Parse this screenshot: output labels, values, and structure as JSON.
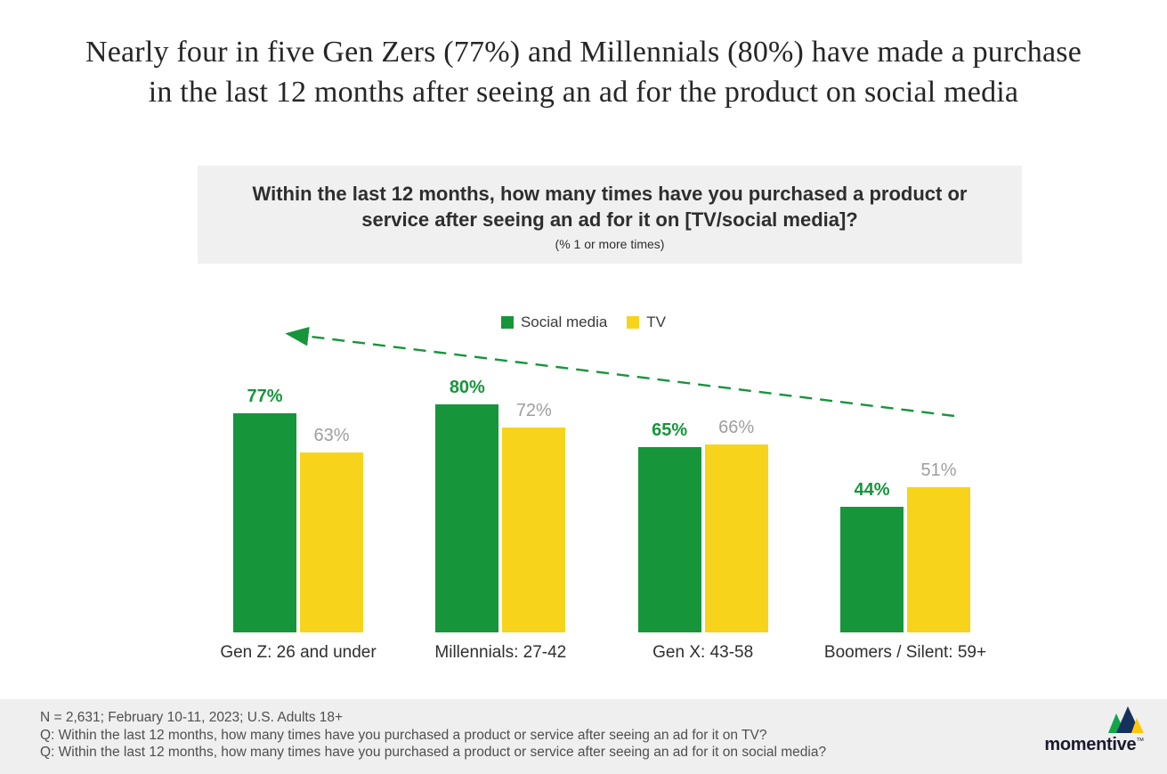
{
  "title": {
    "line1": "Nearly four in five Gen Zers (77%) and Millennials (80%) have made a purchase",
    "line2": "in the last 12 months after seeing an ad for the product on social media"
  },
  "question_box": {
    "question": "Within the last 12 months, how many times have you purchased a product or service after seeing an ad for it on [TV/social media]?",
    "note": "(% 1 or more times)"
  },
  "chart_data": {
    "type": "bar",
    "categories": [
      "Gen Z: 26 and under",
      "Millennials: 27-42",
      "Gen X: 43-58",
      "Boomers / Silent: 59+"
    ],
    "series": [
      {
        "name": "Social media",
        "color": "#17953B",
        "label_color": "#17953B",
        "label_weight": "bold",
        "values": [
          77,
          80,
          65,
          44
        ]
      },
      {
        "name": "TV",
        "color": "#F7D41B",
        "label_color": "#9E9E9E",
        "label_weight": "normal",
        "values": [
          63,
          72,
          66,
          51
        ]
      }
    ],
    "value_suffix": "%",
    "ylim": [
      0,
      100
    ],
    "grid": false,
    "legend_position": "top-center",
    "trend_arrow": {
      "color": "#17953B",
      "style": "dashed",
      "direction": "up-left"
    }
  },
  "footer": {
    "lines": [
      "N = 2,631; February 10-11, 2023; U.S. Adults 18+",
      "Q: Within the last 12 months, how many times have you purchased a product or service after seeing an ad for it on TV?",
      "Q: Within the last 12 months, how many times have you purchased a product or service after seeing an ad for it on social media?"
    ],
    "brand": "momentive",
    "trademark": "™"
  },
  "colors": {
    "question_box_bg": "#F0F0F0",
    "footer_bg": "#EFEFEF",
    "title_text": "#262626",
    "footer_text": "#4F4F4F",
    "logo_green": "#12A54A",
    "logo_navy": "#16325C",
    "logo_yellow": "#FFC80A"
  }
}
